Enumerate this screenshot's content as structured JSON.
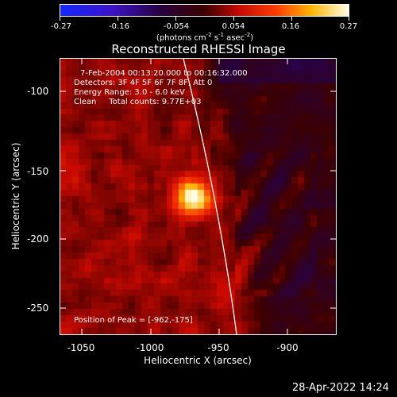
{
  "colorbar": {
    "tick_labels": [
      "-0.27",
      "-0.16",
      "-0.054",
      "0.054",
      "0.16",
      "0.27"
    ],
    "units_main": "(photons cm",
    "units_exp1": "-2",
    "units_mid1": " s",
    "units_exp2": "-1",
    "units_mid2": " asec",
    "units_exp3": "-2",
    "units_end": ")"
  },
  "title": "Reconstructed RHESSI Image",
  "info": {
    "time_range": "7-Feb-2004 00:13:20.000 to 00:16:32.000",
    "detectors": "Detectors: 3F 4F 5F 6F 7F 8F, Att 0",
    "energy": "Energy Range: 3.0 - 6.0 keV",
    "method": "Clean     Total counts: 9.77E+03",
    "peak": "Position of Peak = [-962,-175]"
  },
  "axes": {
    "x_title": "Heliocentric X (arcsec)",
    "y_title": "Heliocentric Y (arcsec)",
    "x_ticks": [
      "-1050",
      "-1000",
      "-950",
      "-900"
    ],
    "y_ticks": [
      "-100",
      "-150",
      "-200",
      "-250"
    ]
  },
  "timestamp": "28-Apr-2022 14:24",
  "colors": {
    "background": "#000000",
    "frame": "#ffffff"
  }
}
